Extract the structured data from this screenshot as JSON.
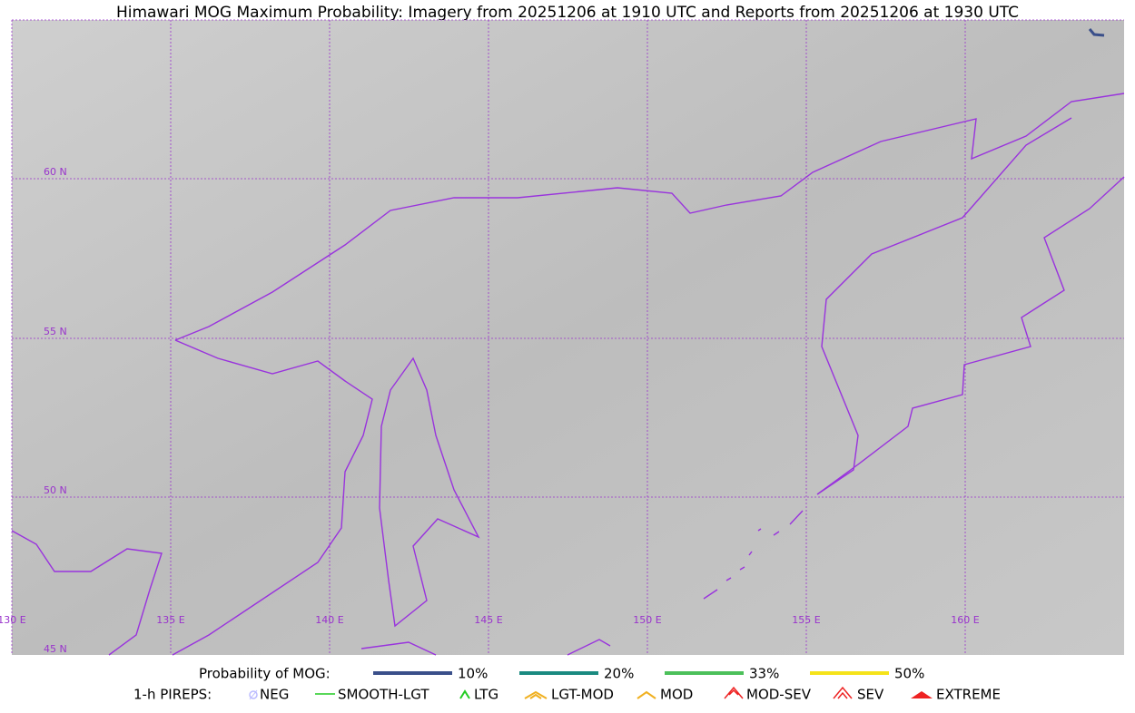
{
  "title": "Himawari MOG Maximum Probability: Imagery from 20251206 at 1910 UTC and Reports from 20251206 at 1930 UTC",
  "map": {
    "latitude_labels": [
      "60 N",
      "55 N",
      "50 N",
      "45 N"
    ],
    "longitude_labels": [
      "130 E",
      "135 E",
      "140 E",
      "145 E",
      "150 E",
      "155 E",
      "160 E"
    ]
  },
  "legend": {
    "probability": {
      "label": "Probability of MOG:",
      "items": [
        "10%",
        "20%",
        "33%",
        "50%"
      ]
    },
    "pireps": {
      "label": "1-h PIREPS:",
      "items": [
        "NEG",
        "SMOOTH-LGT",
        "LTG",
        "LGT-MOD",
        "MOD",
        "MOD-SEV",
        "SEV",
        "EXTREME"
      ]
    }
  }
}
